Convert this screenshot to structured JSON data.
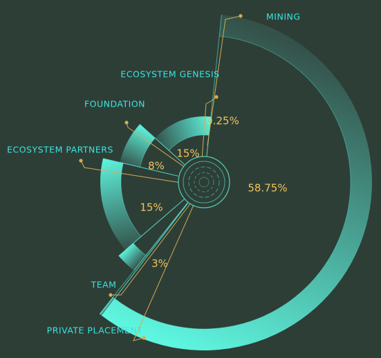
{
  "chart_data": {
    "type": "pie",
    "title": "",
    "legend": "none",
    "categories": [
      "MINING",
      "PRIVATE PLACEMENT",
      "TEAM",
      "ECOSYSTEM PARTNERS",
      "FOUNDATION",
      "ECOSYSTEM GENESIS"
    ],
    "values": [
      58.75,
      0.25,
      3,
      15,
      8,
      15
    ],
    "value_labels": [
      "58.75%",
      "0.25%",
      "3%",
      "15%",
      "8%",
      "15%"
    ]
  },
  "colors": {
    "background": "#2d3e36",
    "ring_light": "#5ef5df",
    "ring_dark": "#34524a",
    "category_label": "#39e6e0",
    "value_label": "#f2c45c",
    "leader_line": "#d4ad55"
  },
  "icons": {
    "center": "concentric-circles-icon"
  }
}
